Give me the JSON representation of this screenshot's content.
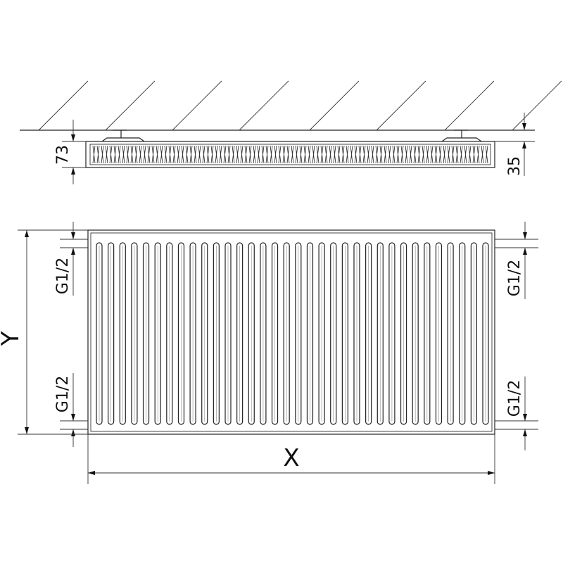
{
  "dimensions": {
    "depth": "73",
    "wall_gap": "35",
    "connection_top_left": "G1/2",
    "connection_bottom_left": "G1/2",
    "connection_top_right": "G1/2",
    "connection_bottom_right": "G1/2",
    "height": "Y",
    "width": "X"
  },
  "panel": {
    "flute_count": 34
  },
  "colors": {
    "line": "#222222",
    "background": "#ffffff"
  }
}
